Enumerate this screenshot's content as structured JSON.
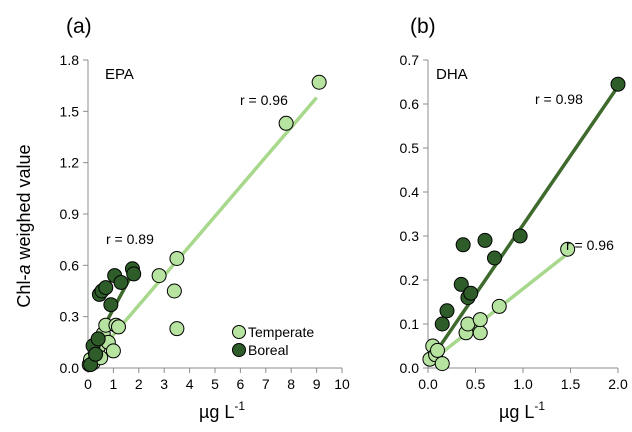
{
  "shared": {
    "ylabel_prefix": "Chl-",
    "ylabel_italic": "a",
    "ylabel_suffix": " weighed value",
    "xlabel_main": "µg L",
    "xlabel_sup": "-1",
    "colors": {
      "temperate": "#b7e3a0",
      "boreal": "#2e5d2a",
      "temperate_line": "#a7d88c",
      "boreal_line": "#3f6a2e"
    }
  },
  "chart_data": [
    {
      "type": "scatter",
      "panel_label": "(a)",
      "annotation": "EPA",
      "xlabel": "µg L-1",
      "ylabel": "Chl-a weighed value",
      "xlim": [
        0,
        10
      ],
      "ylim": [
        0,
        1.8
      ],
      "xticks": [
        "0",
        "1",
        "2",
        "3",
        "4",
        "5",
        "6",
        "7",
        "8",
        "9",
        "10"
      ],
      "yticks": [
        "0.0",
        "0.3",
        "0.6",
        "0.9",
        "1.2",
        "1.5",
        "1.8"
      ],
      "legend": {
        "placement": "bottom-right",
        "entries": [
          "Temperate",
          "Boreal"
        ]
      },
      "series": [
        {
          "name": "Temperate",
          "points": [
            [
              0.05,
              0.02
            ],
            [
              0.1,
              0.05
            ],
            [
              0.2,
              0.03
            ],
            [
              0.3,
              0.08
            ],
            [
              0.4,
              0.12
            ],
            [
              0.5,
              0.06
            ],
            [
              0.6,
              0.2
            ],
            [
              0.7,
              0.25
            ],
            [
              0.8,
              0.15
            ],
            [
              1.0,
              0.1
            ],
            [
              1.1,
              0.25
            ],
            [
              1.2,
              0.24
            ],
            [
              2.8,
              0.54
            ],
            [
              3.4,
              0.45
            ],
            [
              3.5,
              0.64
            ],
            [
              3.5,
              0.23
            ],
            [
              7.8,
              1.43
            ],
            [
              9.1,
              1.67
            ]
          ],
          "fit": {
            "x0": 0.0,
            "y0": 0.02,
            "x1": 9.0,
            "y1": 1.58,
            "label": "r = 0.96"
          }
        },
        {
          "name": "Boreal",
          "points": [
            [
              0.1,
              0.02
            ],
            [
              0.2,
              0.13
            ],
            [
              0.3,
              0.08
            ],
            [
              0.4,
              0.17
            ],
            [
              0.45,
              0.43
            ],
            [
              0.55,
              0.45
            ],
            [
              0.7,
              0.47
            ],
            [
              0.9,
              0.37
            ],
            [
              1.05,
              0.54
            ],
            [
              1.3,
              0.5
            ],
            [
              1.75,
              0.58
            ],
            [
              1.8,
              0.55
            ]
          ],
          "fit": {
            "x0": 0.0,
            "y0": 0.07,
            "x1": 1.85,
            "y1": 0.58,
            "label": "r = 0.89"
          }
        }
      ]
    },
    {
      "type": "scatter",
      "panel_label": "(b)",
      "annotation": "DHA",
      "xlabel": "µg L-1",
      "ylabel": "",
      "xlim": [
        0,
        2
      ],
      "ylim": [
        0,
        0.7
      ],
      "xticks": [
        "0.0",
        "0.5",
        "1.0",
        "1.5",
        "2.0"
      ],
      "yticks": [
        "0.0",
        "0.1",
        "0.2",
        "0.3",
        "0.4",
        "0.5",
        "0.6",
        "0.7"
      ],
      "series": [
        {
          "name": "Temperate",
          "points": [
            [
              0.02,
              0.02
            ],
            [
              0.05,
              0.05
            ],
            [
              0.08,
              0.03
            ],
            [
              0.1,
              0.04
            ],
            [
              0.15,
              0.01
            ],
            [
              0.4,
              0.08
            ],
            [
              0.42,
              0.1
            ],
            [
              0.55,
              0.08
            ],
            [
              0.55,
              0.11
            ],
            [
              0.75,
              0.14
            ],
            [
              1.47,
              0.27
            ]
          ],
          "fit": {
            "x0": 0.0,
            "y0": 0.01,
            "x1": 1.5,
            "y1": 0.265,
            "label": "r = 0.96"
          }
        },
        {
          "name": "Boreal",
          "points": [
            [
              0.15,
              0.1
            ],
            [
              0.2,
              0.13
            ],
            [
              0.35,
              0.19
            ],
            [
              0.37,
              0.28
            ],
            [
              0.42,
              0.16
            ],
            [
              0.45,
              0.17
            ],
            [
              0.6,
              0.29
            ],
            [
              0.7,
              0.25
            ],
            [
              0.97,
              0.3
            ],
            [
              2.0,
              0.645
            ]
          ],
          "fit": {
            "x0": 0.0,
            "y0": 0.01,
            "x1": 2.0,
            "y1": 0.64,
            "label": "r = 0.98"
          }
        }
      ]
    }
  ]
}
